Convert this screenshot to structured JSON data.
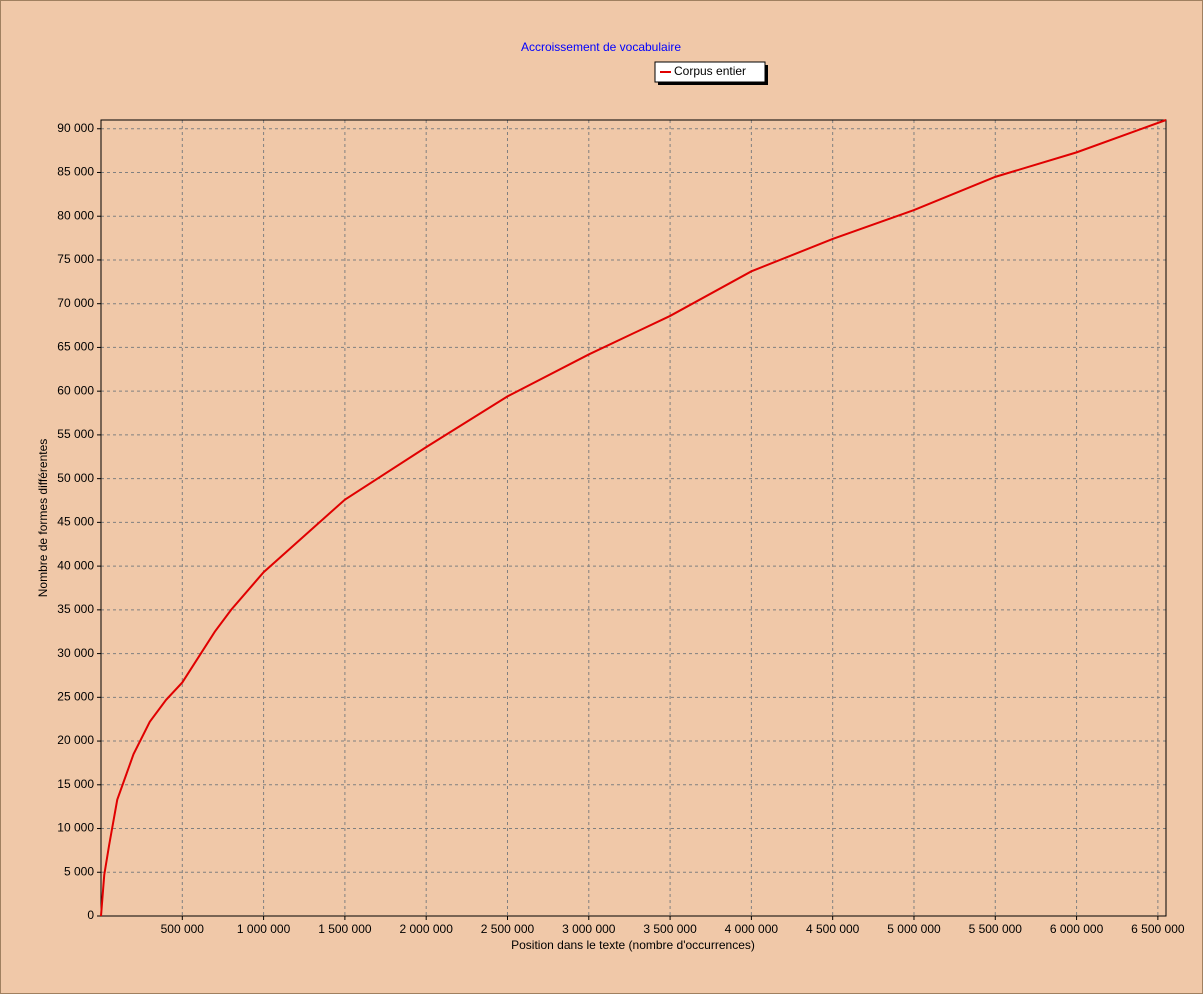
{
  "chart_data": {
    "type": "line",
    "title": "Accroissement de vocabulaire",
    "xlabel": "Position dans le texte (nombre d'occurrences)",
    "ylabel": "Nombre de formes différentes",
    "x": [
      0,
      20000,
      50000,
      100000,
      200000,
      300000,
      400000,
      500000,
      700000,
      800000,
      1000000,
      1500000,
      2000000,
      2500000,
      3000000,
      3500000,
      4000000,
      4500000,
      5000000,
      5500000,
      6000000,
      6550000
    ],
    "series": [
      {
        "name": "Corpus entier",
        "color": "#e00000",
        "values": [
          0,
          4700,
          8100,
          13300,
          18500,
          22200,
          24700,
          26700,
          32500,
          35000,
          39300,
          47600,
          53600,
          59400,
          64200,
          68600,
          73700,
          77400,
          80700,
          84500,
          87300,
          91000
        ]
      }
    ],
    "xlim": [
      0,
      6550000
    ],
    "xticks": [
      {
        "value": 500000,
        "label": "500 000"
      },
      {
        "value": 1000000,
        "label": "1 000 000"
      },
      {
        "value": 1500000,
        "label": "1 500 000"
      },
      {
        "value": 2000000,
        "label": "2 000 000"
      },
      {
        "value": 2500000,
        "label": "2 500 000"
      },
      {
        "value": 3000000,
        "label": "3 000 000"
      },
      {
        "value": 3500000,
        "label": "3 500 000"
      },
      {
        "value": 4000000,
        "label": "4 000 000"
      },
      {
        "value": 4500000,
        "label": "4 500 000"
      },
      {
        "value": 5000000,
        "label": "5 000 000"
      },
      {
        "value": 5500000,
        "label": "5 500 000"
      },
      {
        "value": 6000000,
        "label": "6 000 000"
      },
      {
        "value": 6500000,
        "label": "6 500 000"
      }
    ],
    "ylim": [
      0,
      91000
    ],
    "yticks": [
      0,
      {
        "value": 5000,
        "label": "5 000"
      },
      {
        "value": 10000,
        "label": "10 000"
      },
      {
        "value": 15000,
        "label": "15 000"
      },
      {
        "value": 20000,
        "label": "20 000"
      },
      {
        "value": 25000,
        "label": "25 000"
      },
      {
        "value": 30000,
        "label": "30 000"
      },
      {
        "value": 35000,
        "label": "35 000"
      },
      {
        "value": 40000,
        "label": "40 000"
      },
      {
        "value": 45000,
        "label": "45 000"
      },
      {
        "value": 50000,
        "label": "50 000"
      },
      {
        "value": 55000,
        "label": "55 000"
      },
      {
        "value": 60000,
        "label": "60 000"
      },
      {
        "value": 65000,
        "label": "65 000"
      },
      {
        "value": 70000,
        "label": "70 000"
      },
      {
        "value": 75000,
        "label": "75 000"
      },
      {
        "value": 80000,
        "label": "80 000"
      },
      {
        "value": 85000,
        "label": "85 000"
      },
      {
        "value": 90000,
        "label": "90 000"
      }
    ],
    "grid": true
  }
}
